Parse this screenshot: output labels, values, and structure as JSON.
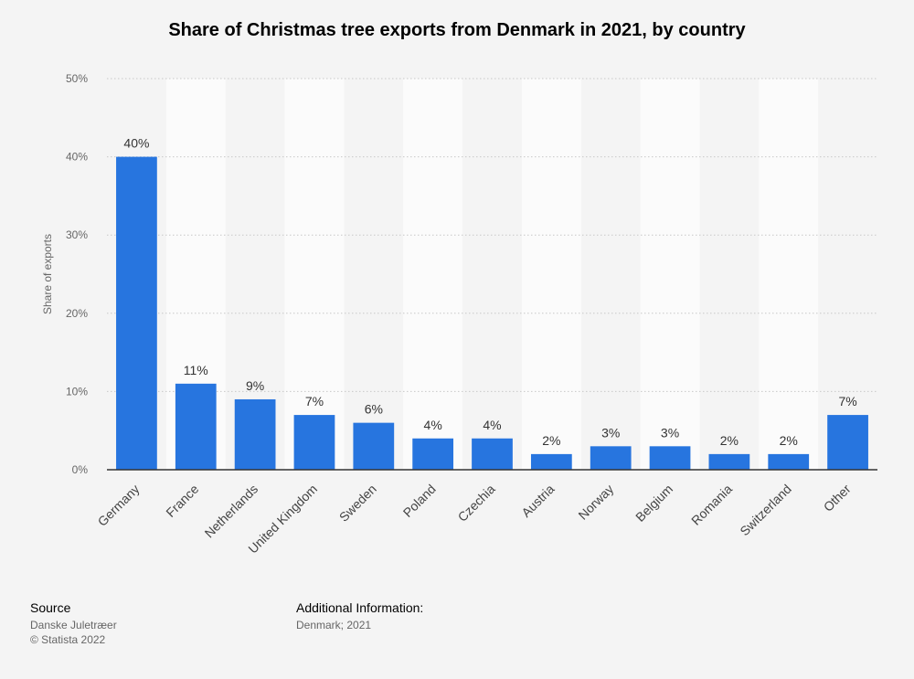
{
  "title": "Share of Christmas tree exports from Denmark in 2021, by country",
  "chart_data": {
    "type": "bar",
    "title": "Share of Christmas tree exports from Denmark in 2021, by country",
    "xlabel": "",
    "ylabel": "Share of exports",
    "categories": [
      "Germany",
      "France",
      "Netherlands",
      "United Kingdom",
      "Sweden",
      "Poland",
      "Czechia",
      "Austria",
      "Norway",
      "Belgium",
      "Romania",
      "Switzerland",
      "Other"
    ],
    "values": [
      40,
      11,
      9,
      7,
      6,
      4,
      4,
      2,
      3,
      3,
      2,
      2,
      7
    ],
    "data_labels": [
      "40%",
      "11%",
      "9%",
      "7%",
      "6%",
      "4%",
      "4%",
      "2%",
      "3%",
      "3%",
      "2%",
      "2%",
      "7%"
    ],
    "ylim": [
      0,
      50
    ],
    "yticks": [
      0,
      10,
      20,
      30,
      40,
      50
    ],
    "ytick_labels": [
      "0%",
      "10%",
      "20%",
      "30%",
      "40%",
      "50%"
    ],
    "grid": true,
    "bar_color": "#2775df"
  },
  "footer": {
    "source_label": "Source",
    "source_lines": [
      "Danske Juletræer",
      "© Statista 2022"
    ],
    "info_label": "Additional Information:",
    "info_lines": [
      "Denmark; 2021"
    ]
  }
}
